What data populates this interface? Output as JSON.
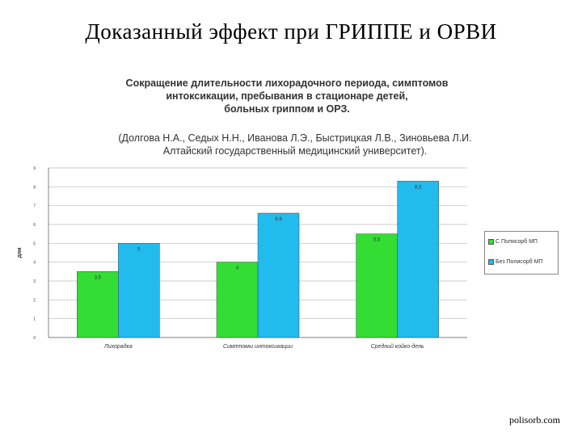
{
  "slide": {
    "title": "Доказанный эффект при ГРИППЕ и ОРВИ",
    "footer": "polisorb.com"
  },
  "chart_data": {
    "type": "bar",
    "title": "Сокращение длительности лихорадочного периода, симптомов\nинтоксикации, пребывания в стационаре детей,\nбольных гриппом и ОРЗ.",
    "subtitle": "(Долгова Н.А., Седых Н.Н., Иванова Л.Э., Быстрицкая Л.В., Зиновьева Л.И.\nАлтайский государственный медицинский университет).",
    "xlabel": "",
    "ylabel": "дни",
    "ylim": [
      0,
      9
    ],
    "yticks": [
      0,
      1,
      2,
      3,
      4,
      5,
      6,
      7,
      8,
      9
    ],
    "grid": true,
    "legend_position": "right",
    "categories": [
      "Лихорадка",
      "Симптомы интоксикации",
      "Средний койко-день"
    ],
    "series": [
      {
        "name": "С Полисорб МП",
        "color": "#33dd33",
        "values": [
          3.5,
          4,
          5.5
        ],
        "labels": [
          "3,5",
          "4",
          "5,5"
        ]
      },
      {
        "name": "Без Полисорб МП",
        "color": "#22bbee",
        "values": [
          5,
          6.6,
          8.3
        ],
        "labels": [
          "5",
          "6,6",
          "8,3"
        ]
      }
    ]
  }
}
